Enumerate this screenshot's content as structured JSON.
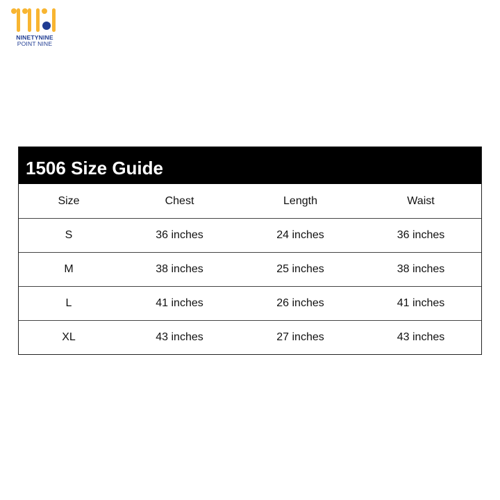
{
  "logo": {
    "line1": "NINETYNINE",
    "line2": "POINT NINE",
    "colors": {
      "yellow": "#f8b531",
      "blue": "#1f3c93"
    }
  },
  "table": {
    "title": "1506 Size Guide",
    "headers": [
      "Size",
      "Chest",
      "Length",
      "Waist"
    ],
    "rows": [
      [
        "S",
        "36 inches",
        "24 inches",
        "36 inches"
      ],
      [
        "M",
        "38 inches",
        "25 inches",
        "38 inches"
      ],
      [
        "L",
        "41 inches",
        "26 inches",
        "41 inches"
      ],
      [
        "XL",
        "43 inches",
        "27 inches",
        "43 inches"
      ]
    ]
  }
}
